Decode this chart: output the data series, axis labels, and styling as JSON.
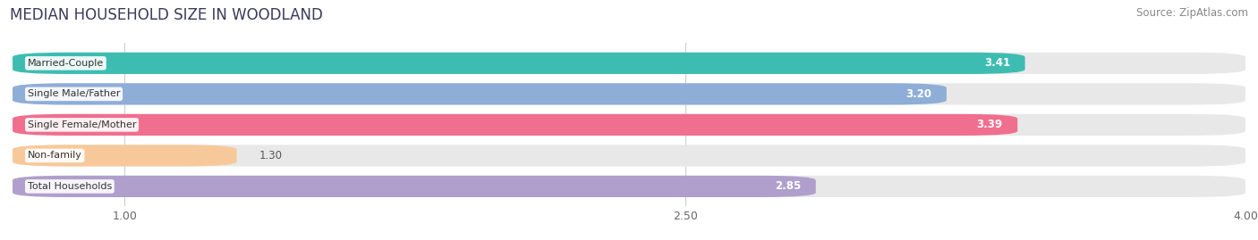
{
  "title": "MEDIAN HOUSEHOLD SIZE IN WOODLAND",
  "source": "Source: ZipAtlas.com",
  "categories": [
    "Married-Couple",
    "Single Male/Father",
    "Single Female/Mother",
    "Non-family",
    "Total Households"
  ],
  "values": [
    3.41,
    3.2,
    3.39,
    1.3,
    2.85
  ],
  "bar_colors": [
    "#3dbdb1",
    "#8eaed8",
    "#f06e8e",
    "#f7c99a",
    "#b09fcc"
  ],
  "xlim_min": 0.7,
  "xlim_max": 4.0,
  "xticks": [
    1.0,
    2.5,
    4.0
  ],
  "background_color": "#ffffff",
  "track_color": "#e8e8e8",
  "title_fontsize": 12,
  "source_fontsize": 8.5,
  "label_fontsize": 8,
  "value_fontsize": 8.5,
  "bar_height": 0.7,
  "bar_gap": 0.15
}
